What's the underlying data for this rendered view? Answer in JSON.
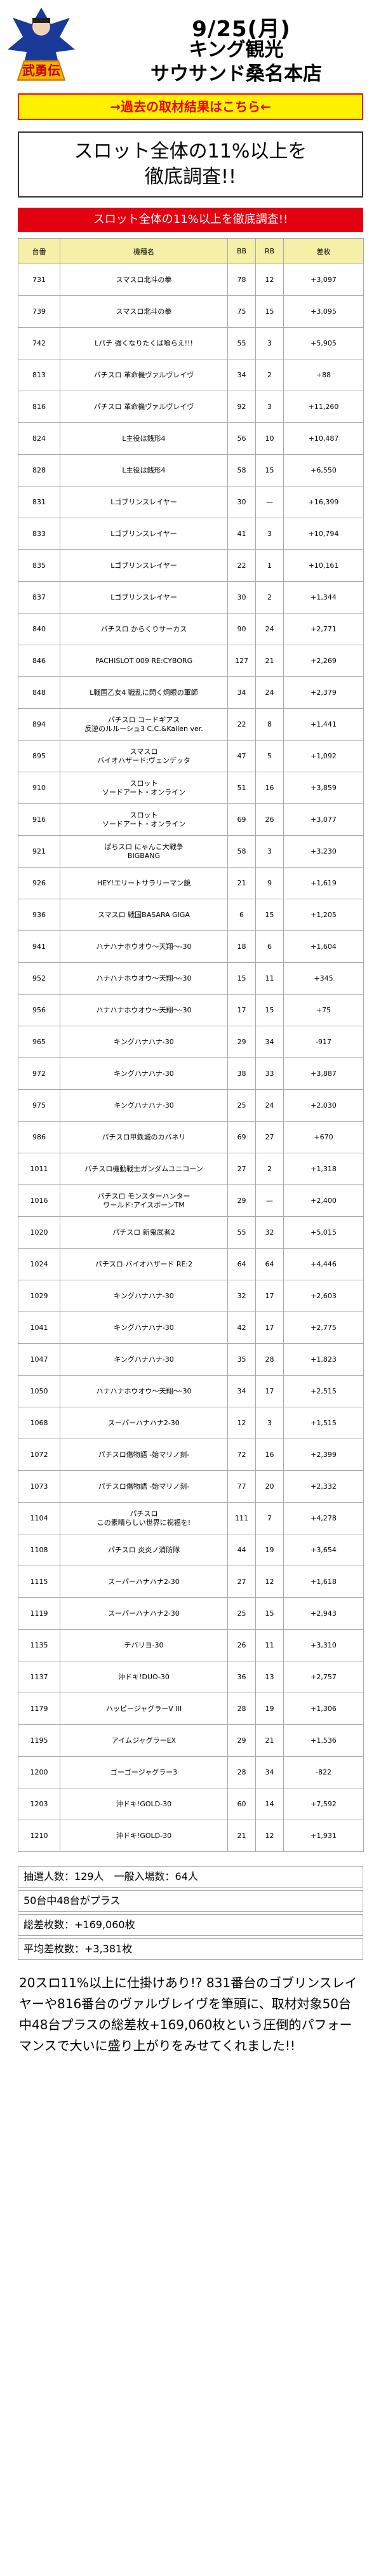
{
  "header": {
    "date": "9/25(月)",
    "store_line1": "キング観光",
    "store_line2": "サウサンド桑名本店",
    "logo_text": "武勇伝"
  },
  "past_link": "→過去の取材結果はこちら←",
  "headline": {
    "line1": "スロット全体の11%以上を",
    "line2": "徹底調査!!"
  },
  "red_bar": "スロット全体の11%以上を徹底調査!!",
  "table": {
    "headers": [
      "台番",
      "機種名",
      "BB",
      "RB",
      "差枚"
    ],
    "rows": [
      [
        "731",
        "スマスロ北斗の拳",
        "78",
        "12",
        "+3,097"
      ],
      [
        "739",
        "スマスロ北斗の拳",
        "75",
        "15",
        "+3,095"
      ],
      [
        "742",
        "Lパチ 強くなりたくば喰らえ!!!",
        "55",
        "3",
        "+5,905"
      ],
      [
        "813",
        "パチスロ 革命機ヴァルヴレイヴ",
        "34",
        "2",
        "+88"
      ],
      [
        "816",
        "パチスロ 革命機ヴァルヴレイヴ",
        "92",
        "3",
        "+11,260"
      ],
      [
        "824",
        "L主役は銭形4",
        "56",
        "10",
        "+10,487"
      ],
      [
        "828",
        "L主役は銭形4",
        "58",
        "15",
        "+6,550"
      ],
      [
        "831",
        "Lゴブリンスレイヤー",
        "30",
        "—",
        "+16,399"
      ],
      [
        "833",
        "Lゴブリンスレイヤー",
        "41",
        "3",
        "+10,794"
      ],
      [
        "835",
        "Lゴブリンスレイヤー",
        "22",
        "1",
        "+10,161"
      ],
      [
        "837",
        "Lゴブリンスレイヤー",
        "30",
        "2",
        "+1,344"
      ],
      [
        "840",
        "パチスロ からくりサーカス",
        "90",
        "24",
        "+2,771"
      ],
      [
        "846",
        "PACHISLOT 009 RE:CYBORG",
        "127",
        "21",
        "+2,269"
      ],
      [
        "848",
        "L戦国乙女4 戦乱に閃く炯眼の軍師",
        "34",
        "24",
        "+2,379"
      ],
      [
        "894",
        "パチスロ コードギアス\n反逆のルルーシュ3 C.C.&Kallen ver.",
        "22",
        "8",
        "+1,441"
      ],
      [
        "895",
        "スマスロ\nバイオハザード:ヴェンデッタ",
        "47",
        "5",
        "+1,092"
      ],
      [
        "910",
        "スロット\nソードアート・オンライン",
        "51",
        "16",
        "+3,859"
      ],
      [
        "916",
        "スロット\nソードアート・オンライン",
        "69",
        "26",
        "+3,077"
      ],
      [
        "921",
        "ぱちスロ にゃんこ大戦争\nBIGBANG",
        "58",
        "3",
        "+3,230"
      ],
      [
        "926",
        "HEY!エリートサラリーマン鏡",
        "21",
        "9",
        "+1,619"
      ],
      [
        "936",
        "スマスロ 戦国BASARA GIGA",
        "6",
        "15",
        "+1,205"
      ],
      [
        "941",
        "ハナハナホウオウ〜天翔〜-30",
        "18",
        "6",
        "+1,604"
      ],
      [
        "952",
        "ハナハナホウオウ〜天翔〜-30",
        "15",
        "11",
        "+345"
      ],
      [
        "956",
        "ハナハナホウオウ〜天翔〜-30",
        "17",
        "15",
        "+75"
      ],
      [
        "965",
        "キングハナハナ-30",
        "29",
        "34",
        "-917"
      ],
      [
        "972",
        "キングハナハナ-30",
        "38",
        "33",
        "+3,887"
      ],
      [
        "975",
        "キングハナハナ-30",
        "25",
        "24",
        "+2,030"
      ],
      [
        "986",
        "パチスロ甲鉄城のカバネリ",
        "69",
        "27",
        "+670"
      ],
      [
        "1011",
        "パチスロ機動戦士ガンダムユニコーン",
        "27",
        "2",
        "+1,318"
      ],
      [
        "1016",
        "パチスロ モンスターハンター\nワールド:アイスボーンTM",
        "29",
        "—",
        "+2,400"
      ],
      [
        "1020",
        "パチスロ 新鬼武者2",
        "55",
        "32",
        "+5,015"
      ],
      [
        "1024",
        "パチスロ バイオハザード RE:2",
        "64",
        "64",
        "+4,446"
      ],
      [
        "1029",
        "キングハナハナ-30",
        "32",
        "17",
        "+2,603"
      ],
      [
        "1041",
        "キングハナハナ-30",
        "42",
        "17",
        "+2,775"
      ],
      [
        "1047",
        "キングハナハナ-30",
        "35",
        "28",
        "+1,823"
      ],
      [
        "1050",
        "ハナハナホウオウ〜天翔〜-30",
        "34",
        "17",
        "+2,515"
      ],
      [
        "1068",
        "スーパーハナハナ2-30",
        "12",
        "3",
        "+1,515"
      ],
      [
        "1072",
        "パチスロ傷物語 -始マリノ刻-",
        "72",
        "16",
        "+2,399"
      ],
      [
        "1073",
        "パチスロ傷物語 -始マリノ刻-",
        "77",
        "20",
        "+2,332"
      ],
      [
        "1104",
        "パチスロ\nこの素晴らしい世界に祝福を!",
        "111",
        "7",
        "+4,278"
      ],
      [
        "1108",
        "パチスロ 炎炎ノ消防隊",
        "44",
        "19",
        "+3,654"
      ],
      [
        "1115",
        "スーパーハナハナ2-30",
        "27",
        "12",
        "+1,618"
      ],
      [
        "1119",
        "スーパーハナハナ2-30",
        "25",
        "15",
        "+2,943"
      ],
      [
        "1135",
        "チバリヨ-30",
        "26",
        "11",
        "+3,310"
      ],
      [
        "1137",
        "沖ドキ!DUO-30",
        "36",
        "13",
        "+2,757"
      ],
      [
        "1179",
        "ハッピージャグラーV III",
        "28",
        "19",
        "+1,306"
      ],
      [
        "1195",
        "アイムジャグラーEX",
        "29",
        "21",
        "+1,536"
      ],
      [
        "1200",
        "ゴーゴージャグラー3",
        "28",
        "34",
        "-822"
      ],
      [
        "1203",
        "沖ドキ!GOLD-30",
        "60",
        "14",
        "+7,592"
      ],
      [
        "1210",
        "沖ドキ!GOLD-30",
        "21",
        "12",
        "+1,931"
      ]
    ]
  },
  "summary": [
    "抽選人数：129人　一般入場数：64人",
    "50台中48台がプラス",
    "総差枚数：+169,060枚",
    "平均差枚数：+3,381枚"
  ],
  "comment": "20スロ11%以上に仕掛けあり!? 831番台のゴブリンスレイヤーや816番台のヴァルヴレイヴを筆頭に、取材対象50台中48台プラスの総差枚+169,060枚という圧倒的パフォーマンスで大いに盛り上がりをみせてくれました!!",
  "colors": {
    "accent_red": "#e3000f",
    "link_yellow": "#fff200",
    "table_header": "#f6efa8",
    "logo_blue": "#1a3a9a",
    "logo_gold": "#f5b400"
  }
}
